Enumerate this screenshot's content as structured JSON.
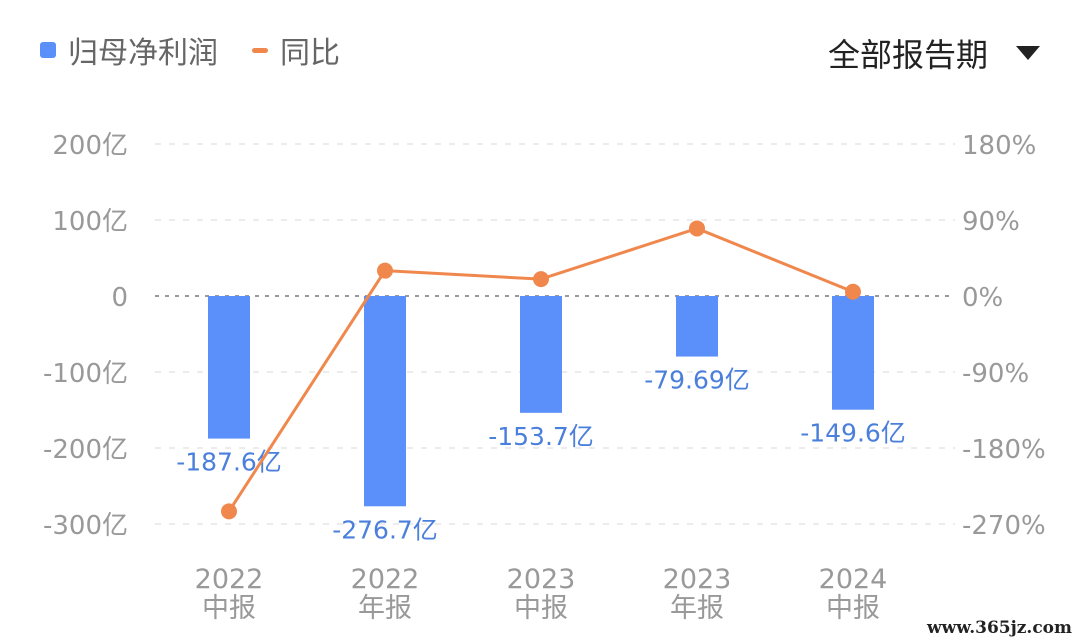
{
  "legend": {
    "bar_label": "归母净利润",
    "line_label": "同比"
  },
  "period_selector": {
    "label": "全部报告期",
    "icon": "caret-down-icon"
  },
  "watermark": "www.365jz.com",
  "colors": {
    "bar": "#5B8FF9",
    "line": "#F0884E",
    "bar_label": "#4A7FDB",
    "axis_text": "#999999"
  },
  "chart_data": {
    "type": "bar",
    "categories": [
      {
        "year": "2022",
        "period": "中报"
      },
      {
        "year": "2022",
        "period": "年报"
      },
      {
        "year": "2023",
        "period": "中报"
      },
      {
        "year": "2023",
        "period": "年报"
      },
      {
        "year": "2024",
        "period": "中报"
      }
    ],
    "series": [
      {
        "name": "归母净利润",
        "type": "bar",
        "axis": "left",
        "values": [
          -187.6,
          -276.7,
          -153.7,
          -79.69,
          -149.6
        ],
        "labels": [
          "-187.6亿",
          "-276.7亿",
          "-153.7亿",
          "-79.69亿",
          "-149.6亿"
        ]
      },
      {
        "name": "同比",
        "type": "line",
        "axis": "right",
        "values": [
          -255,
          30,
          20,
          80,
          5
        ]
      }
    ],
    "left_axis": {
      "ylim": [
        -300,
        200
      ],
      "ticks": [
        200,
        100,
        0,
        -100,
        -200,
        -300
      ],
      "tick_labels": [
        "200亿",
        "100亿",
        "0",
        "-100亿",
        "-200亿",
        "-300亿"
      ]
    },
    "right_axis": {
      "ylim": [
        -270,
        180
      ],
      "ticks": [
        180,
        90,
        0,
        -90,
        -180,
        -270
      ],
      "tick_labels": [
        "180%",
        "90%",
        "0%",
        "-90%",
        "-180%",
        "-270%"
      ]
    },
    "grid": true
  }
}
